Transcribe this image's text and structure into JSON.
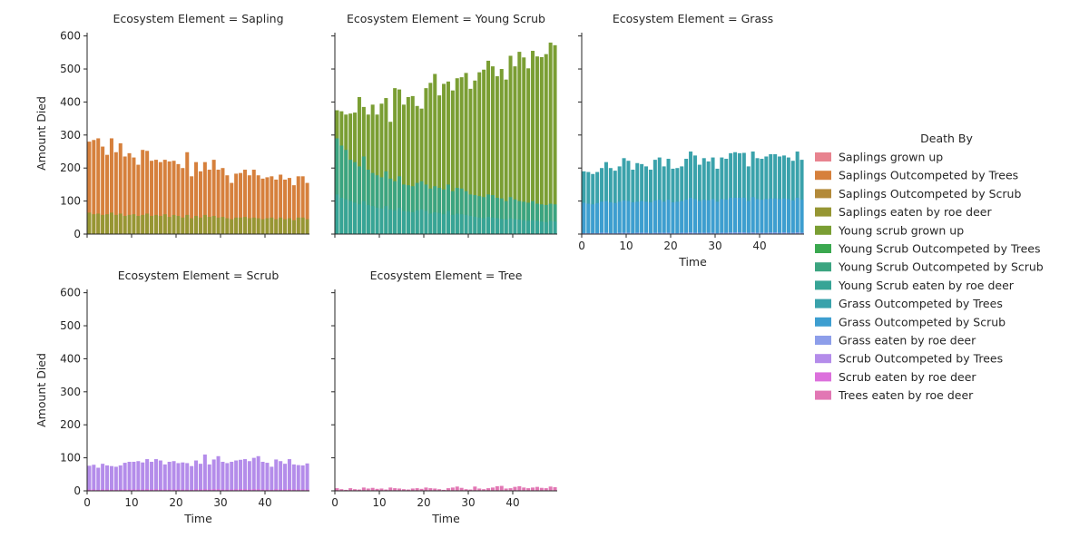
{
  "chart_data": {
    "type": "bar",
    "layout": "faceted-grid",
    "facet_variable": "Ecosystem Element",
    "x_variable": "Time",
    "xlabel": "Time",
    "ylabel": "Amount Died",
    "xlim": [
      0,
      50
    ],
    "ylim": [
      0,
      610
    ],
    "x_ticks": [
      0,
      10,
      20,
      30,
      40
    ],
    "y_ticks": [
      0,
      100,
      200,
      300,
      400,
      500,
      600
    ],
    "grid": false,
    "legend_position": "right",
    "legend": {
      "title": "Death By",
      "entries": [
        {
          "label": "Saplings grown up",
          "color": "#e8838f"
        },
        {
          "label": "Saplings Outcompeted by Trees",
          "color": "#d6803c"
        },
        {
          "label": "Saplings Outcompeted by Scrub",
          "color": "#b38a3a"
        },
        {
          "label": "Saplings eaten by roe deer",
          "color": "#969633"
        },
        {
          "label": "Young scrub grown up",
          "color": "#7a9e33"
        },
        {
          "label": "Young Scrub Outcompeted by Trees",
          "color": "#3aa84f"
        },
        {
          "label": "Young Scrub Outcompeted by Scrub",
          "color": "#3ba480"
        },
        {
          "label": "Young Scrub eaten by roe deer",
          "color": "#37a496"
        },
        {
          "label": "Grass Outcompeted by Trees",
          "color": "#3aa2ab"
        },
        {
          "label": "Grass Outcompeted by Scrub",
          "color": "#3d9ed0"
        },
        {
          "label": "Grass eaten by roe deer",
          "color": "#8d9eea"
        },
        {
          "label": "Scrub Outcompeted by Trees",
          "color": "#b48cea"
        },
        {
          "label": "Scrub eaten by roe deer",
          "color": "#dc70dc"
        },
        {
          "label": "Trees eaten by roe deer",
          "color": "#e277b4"
        }
      ]
    },
    "facets": [
      {
        "title": "Ecosystem Element = Sapling",
        "series": [
          {
            "name": "Saplings Outcompeted by Trees",
            "color": "#d6803c",
            "values": [
              280,
              285,
              290,
              265,
              240,
              290,
              248,
              275,
              235,
              245,
              232,
              210,
              255,
              252,
              222,
              225,
              218,
              225,
              220,
              222,
              212,
              200,
              248,
              175,
              218,
              190,
              218,
              195,
              225,
              195,
              200,
              178,
              155,
              183,
              185,
              195,
              178,
              195,
              178,
              168,
              172,
              175,
              165,
              180,
              165,
              170,
              148,
              175,
              175,
              155
            ]
          },
          {
            "name": "Saplings eaten by roe deer",
            "color": "#969633",
            "values": [
              65,
              60,
              62,
              58,
              60,
              65,
              58,
              62,
              55,
              58,
              60,
              55,
              58,
              62,
              55,
              58,
              55,
              60,
              52,
              58,
              55,
              50,
              58,
              48,
              55,
              50,
              58,
              52,
              55,
              50,
              52,
              48,
              45,
              50,
              50,
              52,
              48,
              50,
              48,
              45,
              48,
              50,
              45,
              50,
              45,
              48,
              42,
              50,
              50,
              45
            ]
          }
        ]
      },
      {
        "title": "Ecosystem Element = Young Scrub",
        "series": [
          {
            "name": "Young scrub grown up",
            "color": "#7a9e33",
            "values": [
              375,
              372,
              362,
              365,
              368,
              415,
              385,
              362,
              392,
              362,
              395,
              412,
              340,
              442,
              438,
              392,
              415,
              418,
              388,
              380,
              442,
              458,
              485,
              420,
              455,
              462,
              435,
              472,
              475,
              488,
              440,
              465,
              490,
              498,
              525,
              508,
              478,
              500,
              468,
              540,
              508,
              552,
              535,
              502,
              555,
              538,
              536,
              545,
              580,
              572
            ]
          },
          {
            "name": "Young Scrub Outcompeted by Scrub",
            "color": "#3ba480",
            "values": [
              290,
              268,
              255,
              225,
              218,
              205,
              235,
              195,
              185,
              178,
              172,
              190,
              168,
              160,
              175,
              150,
              148,
              145,
              155,
              160,
              150,
              138,
              145,
              140,
              135,
              150,
              130,
              140,
              138,
              130,
              120,
              118,
              115,
              112,
              120,
              118,
              110,
              108,
              100,
              112,
              105,
              100,
              98,
              95,
              100,
              92,
              90,
              88,
              92,
              90
            ]
          },
          {
            "name": "Young Scrub eaten by roe deer",
            "color": "#37a496",
            "values": [
              120,
              110,
              105,
              100,
              95,
              90,
              100,
              88,
              85,
              80,
              78,
              85,
              75,
              72,
              80,
              70,
              68,
              66,
              72,
              75,
              70,
              62,
              66,
              64,
              60,
              70,
              58,
              62,
              60,
              58,
              55,
              52,
              50,
              48,
              52,
              50,
              48,
              46,
              44,
              48,
              45,
              44,
              42,
              40,
              42,
              40,
              38,
              36,
              40,
              38
            ]
          }
        ]
      },
      {
        "title": "Ecosystem Element = Grass",
        "series": [
          {
            "name": "Grass Outcompeted by Trees",
            "color": "#3aa2ab",
            "values": [
              190,
              188,
              182,
              188,
              200,
              218,
              200,
              192,
              205,
              230,
              222,
              195,
              215,
              212,
              205,
              195,
              225,
              232,
              205,
              228,
              198,
              200,
              205,
              228,
              250,
              238,
              210,
              230,
              220,
              232,
              198,
              232,
              228,
              245,
              248,
              245,
              246,
              205,
              250,
              230,
              228,
              235,
              242,
              242,
              235,
              238,
              232,
              222,
              250,
              225
            ]
          },
          {
            "name": "Grass Outcompeted by Scrub",
            "color": "#3d9ed0",
            "values": [
              95,
              92,
              90,
              94,
              98,
              100,
              96,
              94,
              98,
              102,
              100,
              96,
              98,
              100,
              98,
              96,
              102,
              104,
              98,
              104,
              96,
              98,
              100,
              104,
              110,
              106,
              100,
              104,
              102,
              106,
              98,
              106,
              104,
              110,
              110,
              110,
              110,
              100,
              112,
              106,
              104,
              106,
              108,
              108,
              106,
              108,
              106,
              102,
              110,
              104
            ]
          },
          {
            "name": "Grass eaten by roe deer",
            "color": "#8d9eea",
            "values": [
              3,
              3,
              3,
              3,
              4,
              4,
              3,
              3,
              4,
              4,
              4,
              3,
              4,
              4,
              4,
              3,
              4,
              4,
              4,
              4,
              3,
              3,
              4,
              4,
              5,
              4,
              4,
              4,
              4,
              4,
              3,
              4,
              4,
              5,
              5,
              5,
              5,
              4,
              5,
              4,
              4,
              4,
              5,
              5,
              4,
              5,
              4,
              4,
              5,
              4
            ]
          }
        ]
      },
      {
        "title": "Ecosystem Element = Scrub",
        "series": [
          {
            "name": "Scrub Outcompeted by Trees",
            "color": "#b48cea",
            "values": [
              76,
              79,
              70,
              82,
              77,
              75,
              73,
              77,
              85,
              88,
              88,
              90,
              86,
              96,
              88,
              96,
              92,
              80,
              88,
              90,
              84,
              86,
              84,
              75,
              92,
              82,
              110,
              80,
              95,
              105,
              88,
              84,
              88,
              92,
              94,
              96,
              90,
              100,
              105,
              88,
              85,
              73,
              95,
              90,
              82,
              96,
              80,
              78,
              77,
              83
            ]
          },
          {
            "name": "Scrub eaten by roe deer",
            "color": "#dc70dc",
            "values": [
              4,
              4,
              3,
              4,
              4,
              4,
              3,
              4,
              4,
              4,
              4,
              4,
              4,
              5,
              4,
              5,
              4,
              4,
              4,
              4,
              4,
              4,
              4,
              3,
              5,
              4,
              5,
              4,
              5,
              5,
              4,
              4,
              4,
              5,
              5,
              5,
              4,
              5,
              5,
              4,
              4,
              3,
              5,
              4,
              4,
              5,
              4,
              4,
              4,
              4
            ]
          }
        ]
      },
      {
        "title": "Ecosystem Element = Tree",
        "series": [
          {
            "name": "Trees eaten by roe deer",
            "color": "#e277b4",
            "values": [
              8,
              5,
              3,
              8,
              5,
              4,
              10,
              7,
              9,
              6,
              7,
              4,
              10,
              8,
              7,
              5,
              4,
              7,
              8,
              6,
              10,
              8,
              7,
              5,
              3,
              8,
              10,
              13,
              9,
              5,
              4,
              13,
              7,
              5,
              8,
              10,
              14,
              15,
              7,
              8,
              12,
              14,
              10,
              8,
              10,
              12,
              9,
              8,
              13,
              11
            ]
          }
        ]
      }
    ]
  }
}
